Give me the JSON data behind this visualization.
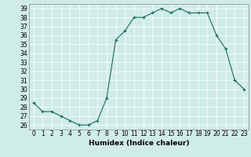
{
  "x": [
    0,
    1,
    2,
    3,
    4,
    5,
    6,
    7,
    8,
    9,
    10,
    11,
    12,
    13,
    14,
    15,
    16,
    17,
    18,
    19,
    20,
    21,
    22,
    23
  ],
  "y": [
    28.5,
    27.5,
    27.5,
    27.0,
    26.5,
    26.0,
    26.0,
    26.5,
    29.0,
    35.5,
    36.5,
    38.0,
    38.0,
    38.5,
    39.0,
    38.5,
    39.0,
    38.5,
    38.5,
    38.5,
    36.0,
    34.5,
    31.0,
    30.0
  ],
  "line_color": "#1a6b5a",
  "marker": "+",
  "marker_size": 3,
  "bg_color": "#d0ece8",
  "grid_color": "#ffffff",
  "xlabel": "Humidex (Indice chaleur)",
  "ylim": [
    25.5,
    39.5
  ],
  "xlim": [
    -0.5,
    23.5
  ],
  "yticks": [
    26,
    27,
    28,
    29,
    30,
    31,
    32,
    33,
    34,
    35,
    36,
    37,
    38,
    39
  ],
  "xticks": [
    0,
    1,
    2,
    3,
    4,
    5,
    6,
    7,
    8,
    9,
    10,
    11,
    12,
    13,
    14,
    15,
    16,
    17,
    18,
    19,
    20,
    21,
    22,
    23
  ],
  "label_fontsize": 6.5,
  "tick_fontsize": 5.5
}
